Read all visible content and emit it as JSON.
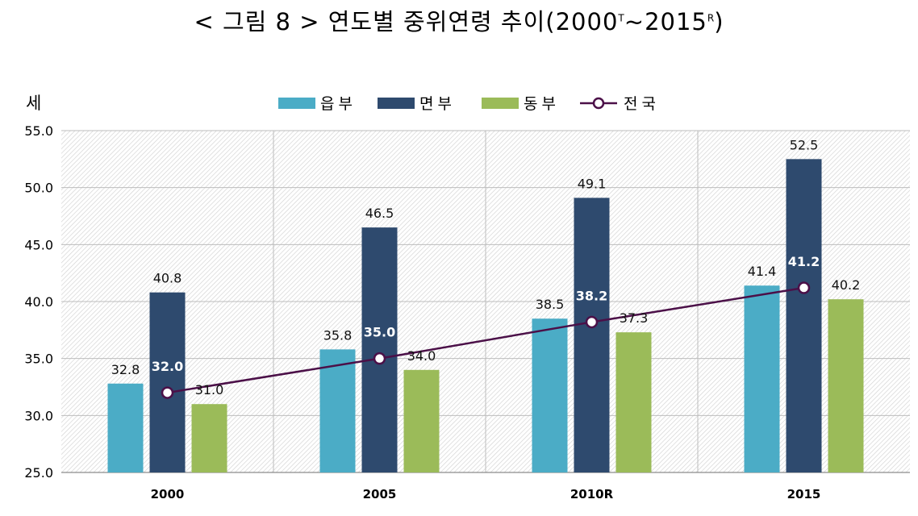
{
  "title": {
    "main": "< 그림 8 > 연도별 중위연령 추이(2000",
    "sup1": "T",
    "mid": "~2015",
    "sup2": "R",
    "end": ")"
  },
  "unit_label": "세",
  "chart_data": {
    "type": "bar",
    "categories": [
      "2000",
      "2005",
      "2010R",
      "2015"
    ],
    "series": [
      {
        "name": "읍부",
        "kind": "bar",
        "color": "#4bacc6",
        "values": [
          32.8,
          35.8,
          38.5,
          41.4
        ]
      },
      {
        "name": "면부",
        "kind": "bar",
        "color": "#2e4a6e",
        "values": [
          40.8,
          46.5,
          49.1,
          52.5
        ]
      },
      {
        "name": "동부",
        "kind": "bar",
        "color": "#9bbb59",
        "values": [
          31.0,
          34.0,
          37.3,
          40.2
        ]
      },
      {
        "name": "전국",
        "kind": "line",
        "color": "#4b1048",
        "values": [
          32.0,
          35.0,
          38.2,
          41.2
        ]
      }
    ],
    "ylim": [
      25.0,
      55.0
    ],
    "yticks": [
      "55.0",
      "50.0",
      "45.0",
      "40.0",
      "35.0",
      "30.0",
      "25.0"
    ],
    "ylabel": "세",
    "grid": true,
    "legend_position": "top-center"
  }
}
